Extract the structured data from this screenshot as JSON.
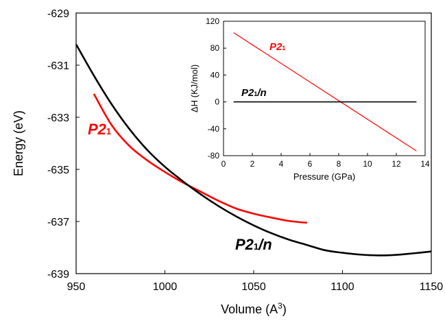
{
  "chart_data": [
    {
      "type": "line",
      "xlabel": "Volume (A",
      "xlabel_sup": "3",
      "xlabel_close": ")",
      "ylabel": "Energy (eV)",
      "xlim": [
        950,
        1150
      ],
      "ylim": [
        -639,
        -629
      ],
      "x_ticks": [
        950,
        1000,
        1050,
        1100,
        1150
      ],
      "y_ticks": [
        -629,
        -631,
        -633,
        -635,
        -637,
        -639
      ],
      "y_tick_labels": [
        "-629",
        "-631",
        "-633",
        "-635",
        "-637",
        "-639"
      ],
      "grid": false,
      "series": [
        {
          "name": "P2₁",
          "color": "#ff0000",
          "x": [
            960,
            970,
            980,
            990,
            1000,
            1010,
            1020,
            1030,
            1040,
            1050,
            1060,
            1070,
            1080
          ],
          "y": [
            -632.1,
            -633.3,
            -634.1,
            -634.65,
            -635.1,
            -635.5,
            -635.85,
            -636.2,
            -636.5,
            -636.7,
            -636.85,
            -636.98,
            -637.05
          ]
        },
        {
          "name": "P2₁/n",
          "color": "#000000",
          "x": [
            950,
            960,
            970,
            980,
            990,
            1000,
            1010,
            1020,
            1030,
            1040,
            1050,
            1060,
            1070,
            1080,
            1090,
            1100,
            1110,
            1120,
            1130,
            1140,
            1150
          ],
          "y": [
            -630.2,
            -631.4,
            -632.5,
            -633.45,
            -634.25,
            -634.9,
            -635.45,
            -635.95,
            -636.4,
            -636.8,
            -637.15,
            -637.45,
            -637.7,
            -637.9,
            -638.1,
            -638.2,
            -638.27,
            -638.3,
            -638.28,
            -638.22,
            -638.15
          ]
        }
      ],
      "labels": [
        {
          "base": "P2",
          "sub": "1",
          "suffix": "",
          "color": "#ff0000"
        },
        {
          "base": "P2",
          "sub": "1",
          "suffix": "/n",
          "color": "#000000"
        }
      ]
    },
    {
      "type": "line",
      "xlabel": "Pressure (GPa)",
      "ylabel": "ΔH (KJ/mol)",
      "xlim": [
        0,
        14
      ],
      "ylim": [
        -80,
        120
      ],
      "x_ticks": [
        0,
        2,
        4,
        6,
        8,
        10,
        12,
        14
      ],
      "y_ticks": [
        -80,
        -40,
        0,
        40,
        80,
        120
      ],
      "y_tick_labels": [
        "-80",
        "-40",
        "0",
        "40",
        "80",
        "120"
      ],
      "grid": false,
      "series": [
        {
          "name": "P2₁",
          "color": "#ff0000",
          "x": [
            0.7,
            13.4
          ],
          "y": [
            103,
            -73
          ]
        },
        {
          "name": "P2₁/n",
          "color": "#000000",
          "x": [
            0.7,
            13.4
          ],
          "y": [
            0,
            0
          ]
        }
      ],
      "labels": [
        {
          "base": "P2",
          "sub": "1",
          "suffix": "",
          "color": "#ff0000"
        },
        {
          "base": "P2",
          "sub": "1",
          "suffix": "/n",
          "color": "#000000"
        }
      ]
    }
  ]
}
